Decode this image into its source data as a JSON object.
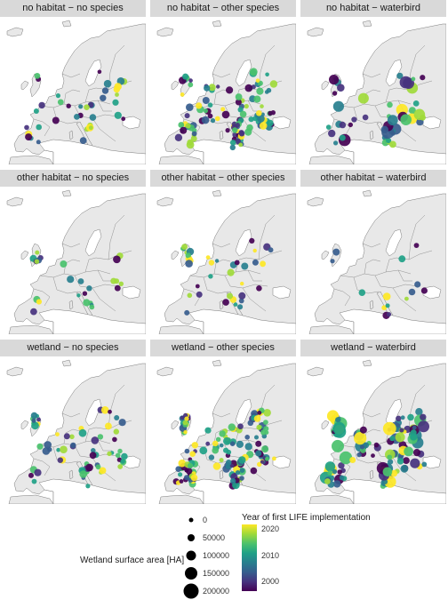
{
  "figure": {
    "panels": [
      {
        "title": "no habitat − no species",
        "n_sites": 38
      },
      {
        "title": "no habitat − other species",
        "n_sites": 110
      },
      {
        "title": "no habitat − waterbird",
        "n_sites": 48
      },
      {
        "title": "other habitat − no species",
        "n_sites": 26
      },
      {
        "title": "other habitat − other species",
        "n_sites": 36
      },
      {
        "title": "other habitat − waterbird",
        "n_sites": 14
      },
      {
        "title": "wetland − no species",
        "n_sites": 62
      },
      {
        "title": "wetland − other species",
        "n_sites": 150
      },
      {
        "title": "wetland − waterbird",
        "n_sites": 120
      }
    ],
    "colors": {
      "land": "#e8e8e8",
      "borders": "#7a7a7a",
      "sea": "#ffffff",
      "strip": "#d9d9d9"
    }
  },
  "legend": {
    "size_title": "Wetland surface area [HA]",
    "size_breaks": [
      "0",
      "50000",
      "100000",
      "150000",
      "200000"
    ],
    "color_title": "Year of first LIFE implementation",
    "color_breaks": [
      "2020",
      "2010",
      "2000"
    ],
    "colormap": "viridis"
  }
}
